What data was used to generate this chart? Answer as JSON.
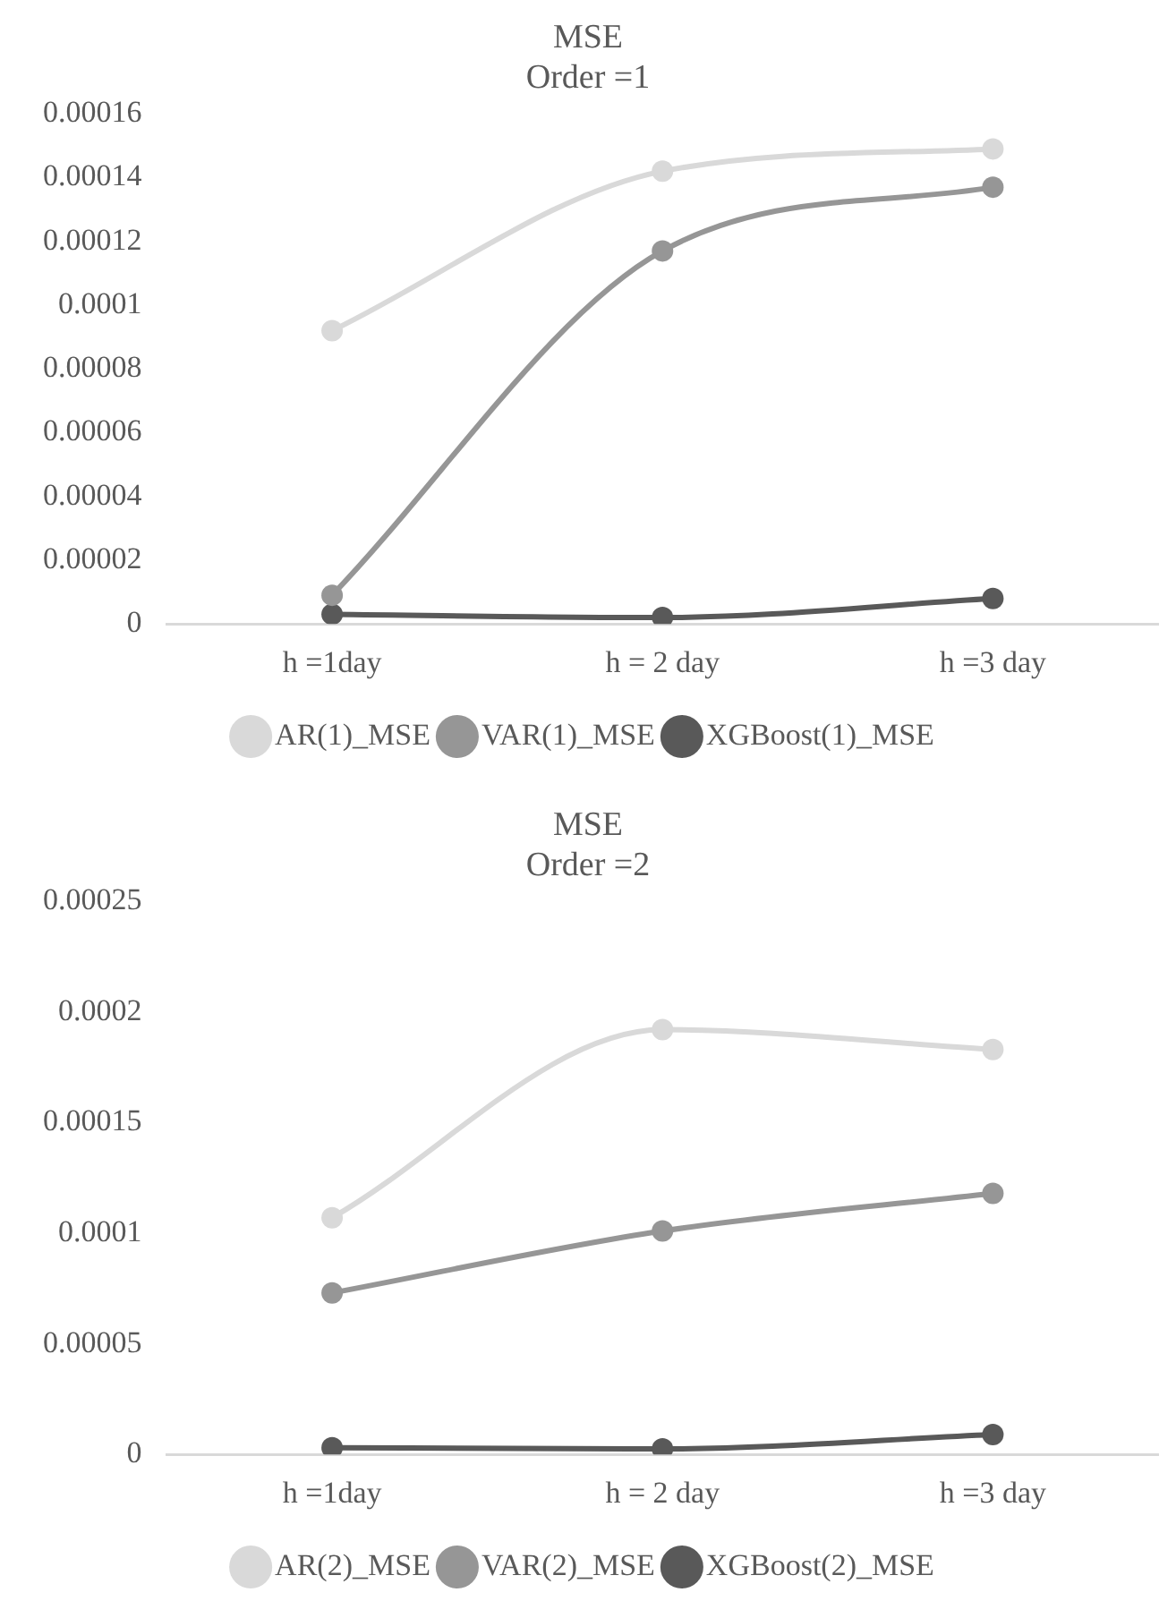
{
  "chart_data": [
    {
      "type": "line",
      "title": "MSE",
      "subtitle": "Order =1",
      "categories": [
        "h =1day",
        "h = 2 day",
        "h =3 day"
      ],
      "series": [
        {
          "name": "AR(1)_MSE",
          "color": "#d9d9d9",
          "values": [
            9.2e-05,
            0.000142,
            0.000149
          ]
        },
        {
          "name": "VAR(1)_MSE",
          "color": "#969696",
          "values": [
            9e-06,
            0.000117,
            0.000137
          ]
        },
        {
          "name": "XGBoost(1)_MSE",
          "color": "#595959",
          "values": [
            3e-06,
            2e-06,
            8e-06
          ]
        }
      ],
      "ylim": [
        0,
        0.00016
      ],
      "yticks": [
        0,
        {
          "value": 2e-05,
          "label": "0.00002"
        },
        {
          "value": 4e-05,
          "label": "0.00004"
        },
        {
          "value": 6e-05,
          "label": "0.00006"
        },
        {
          "value": 8e-05,
          "label": "0.00008"
        },
        0.0001,
        0.00012,
        0.00014,
        0.00016
      ],
      "grid": false,
      "legend": "bottom",
      "marker": "circle",
      "line_style": "solid"
    },
    {
      "type": "line",
      "title": "MSE",
      "subtitle": "Order =2",
      "categories": [
        "h =1day",
        "h = 2 day",
        "h =3 day"
      ],
      "series": [
        {
          "name": "AR(2)_MSE",
          "color": "#d9d9d9",
          "values": [
            0.000107,
            0.000192,
            0.000183
          ]
        },
        {
          "name": "VAR(2)_MSE",
          "color": "#969696",
          "values": [
            7.3e-05,
            0.000101,
            0.000118
          ]
        },
        {
          "name": "XGBoost(2)_MSE",
          "color": "#595959",
          "values": [
            3e-06,
            2.5e-06,
            9e-06
          ]
        }
      ],
      "ylim": [
        0,
        0.00025
      ],
      "yticks": [
        0,
        {
          "value": 5e-05,
          "label": "0.00005"
        },
        0.0001,
        0.00015,
        0.0002,
        0.00025
      ],
      "grid": false,
      "legend": "bottom",
      "marker": "circle",
      "line_style": "solid"
    }
  ]
}
